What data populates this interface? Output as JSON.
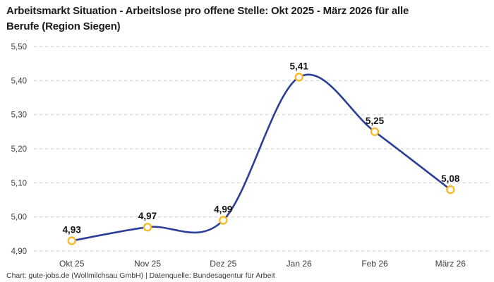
{
  "header": {
    "title": "Arbeitsmarkt Situation - Arbeitslose pro offene Stelle: Okt 2025 - März 2026 für alle\nBerufe (Region Siegen)"
  },
  "footer": {
    "credit": "Chart: gute-jobs.de (Wollmilchsau GmbH) | Datenquelle: Bundesagentur für Arbeit"
  },
  "chart_data": {
    "type": "line",
    "title": "Arbeitsmarkt Situation - Arbeitslose pro offene Stelle: Okt 2025 - März 2026 für alle Berufe (Region Siegen)",
    "categories": [
      "Okt 25",
      "Nov 25",
      "Dez 25",
      "Jan 26",
      "Feb 26",
      "März 26"
    ],
    "values": [
      4.93,
      4.97,
      4.99,
      5.41,
      5.25,
      5.08
    ],
    "value_labels": [
      "4,93",
      "4,97",
      "4,99",
      "5,41",
      "5,25",
      "5,08"
    ],
    "xlabel": "",
    "ylabel": "",
    "ylim": [
      4.9,
      5.5
    ],
    "yticks": [
      4.9,
      5.0,
      5.1,
      5.2,
      5.3,
      5.4,
      5.5
    ],
    "ytick_labels": [
      "4,90",
      "5,00",
      "5,10",
      "5,20",
      "5,30",
      "5,40",
      "5,50"
    ],
    "grid": "horizontal-dashed",
    "legend": "none",
    "line_color": "#2b3f99",
    "marker_fill": "#ffffff",
    "marker_ring_color": "#f7bb25",
    "grid_color": "#c9c9c9"
  }
}
